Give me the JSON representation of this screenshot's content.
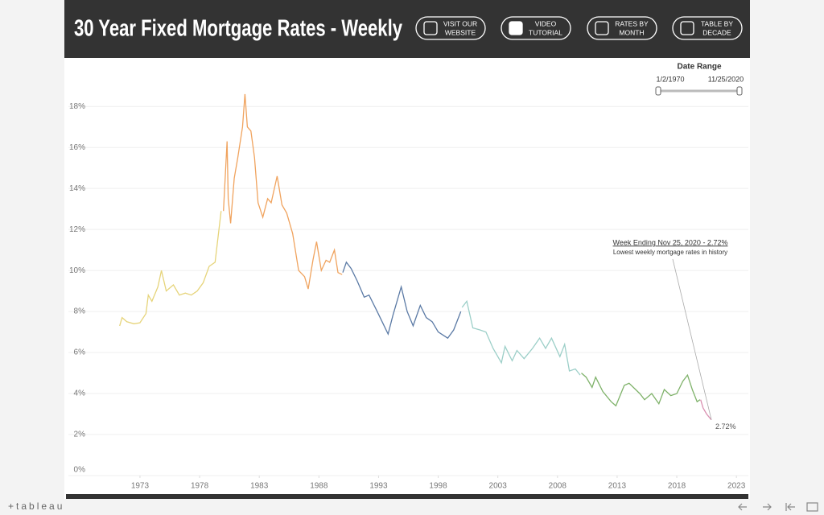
{
  "header": {
    "title": "30 Year Fixed Mortgage Rates - Weekly",
    "buttons": [
      [
        "VISIT OUR",
        "WEBSITE"
      ],
      [
        "VIDEO",
        "TUTORIAL"
      ],
      [
        "RATES BY",
        "MONTH"
      ],
      [
        "TABLE BY",
        "DECADE"
      ]
    ]
  },
  "date_range": {
    "title": "Date Range",
    "start": "1/2/1970",
    "end": "11/25/2020"
  },
  "footer": {
    "brand": "+tableau"
  },
  "chart_data": {
    "type": "line",
    "xlim": [
      1967,
      2024
    ],
    "xticks": [
      1973,
      1978,
      1983,
      1988,
      1993,
      1998,
      2003,
      2008,
      2013,
      2018,
      2023
    ],
    "ylim": [
      0,
      19.5
    ],
    "yticks": [
      {
        "value": 0,
        "label": "0%"
      },
      {
        "value": 2,
        "label": "2%"
      },
      {
        "value": 4,
        "label": "4%"
      },
      {
        "value": 6,
        "label": "6%"
      },
      {
        "value": 8,
        "label": "8%"
      },
      {
        "value": 10,
        "label": "10%"
      },
      {
        "value": 12,
        "label": "12%"
      },
      {
        "value": 14,
        "label": "14%"
      },
      {
        "value": 16,
        "label": "16%"
      },
      {
        "value": 18,
        "label": "18%"
      }
    ],
    "grid": true,
    "annotation": {
      "title": "Week Ending Nov 25, 2020 - 2.72%",
      "text": "Lowest weekly mortgage rates in history"
    },
    "series": [
      {
        "color": "#e6d47a",
        "x": [
          1971.3,
          1971.5,
          1971.9,
          1972.5,
          1973.0,
          1973.5,
          1973.7,
          1974.0,
          1974.5,
          1974.8,
          1975.2,
          1975.8,
          1976.3,
          1976.8,
          1977.3,
          1977.8,
          1978.3,
          1978.8,
          1979.3,
          1979.8
        ],
        "values": [
          7.3,
          7.7,
          7.5,
          7.4,
          7.45,
          7.9,
          8.8,
          8.5,
          9.2,
          10.0,
          9.0,
          9.3,
          8.8,
          8.9,
          8.8,
          9.0,
          9.4,
          10.2,
          10.4,
          12.9
        ]
      },
      {
        "color": "#f0a35e",
        "x": [
          1980.0,
          1980.3,
          1980.4,
          1980.6,
          1980.9,
          1981.2,
          1981.6,
          1981.8,
          1982.0,
          1982.3,
          1982.6,
          1982.9,
          1983.3,
          1983.7,
          1984.0,
          1984.5,
          1984.9,
          1985.3,
          1985.8,
          1986.3,
          1986.8,
          1987.1,
          1987.5,
          1987.8,
          1988.2,
          1988.6,
          1988.9,
          1989.3,
          1989.6,
          1989.95
        ],
        "values": [
          12.9,
          16.3,
          13.5,
          12.3,
          14.5,
          15.5,
          17.0,
          18.6,
          17.0,
          16.8,
          15.5,
          13.3,
          12.6,
          13.5,
          13.3,
          14.6,
          13.2,
          12.8,
          11.8,
          10.0,
          9.7,
          9.1,
          10.5,
          11.4,
          10.0,
          10.5,
          10.4,
          11.0,
          9.9,
          9.8
        ]
      },
      {
        "color": "#5b7aa5",
        "x": [
          1990.0,
          1990.3,
          1990.7,
          1991.2,
          1991.8,
          1992.2,
          1992.8,
          1993.3,
          1993.8,
          1994.2,
          1994.9,
          1995.4,
          1995.9,
          1996.5,
          1997.0,
          1997.5,
          1998.0,
          1998.8,
          1999.3,
          1999.9
        ],
        "values": [
          9.9,
          10.4,
          10.1,
          9.5,
          8.7,
          8.8,
          8.1,
          7.5,
          6.9,
          7.8,
          9.2,
          8.0,
          7.3,
          8.3,
          7.7,
          7.5,
          7.0,
          6.7,
          7.1,
          8.0
        ]
      },
      {
        "color": "#9ccfc8",
        "x": [
          2000.0,
          2000.4,
          2000.9,
          2001.5,
          2002.0,
          2002.6,
          2003.3,
          2003.6,
          2004.2,
          2004.6,
          2005.2,
          2005.9,
          2006.5,
          2007.0,
          2007.5,
          2008.2,
          2008.6,
          2009.0,
          2009.5,
          2009.9
        ],
        "values": [
          8.2,
          8.5,
          7.2,
          7.1,
          7.0,
          6.2,
          5.5,
          6.3,
          5.6,
          6.1,
          5.7,
          6.2,
          6.7,
          6.2,
          6.7,
          5.8,
          6.4,
          5.1,
          5.2,
          4.9
        ]
      },
      {
        "color": "#7fb26a",
        "x": [
          2010.0,
          2010.4,
          2010.9,
          2011.2,
          2011.8,
          2012.5,
          2012.9,
          2013.6,
          2014.0,
          2014.9,
          2015.3,
          2015.9,
          2016.5,
          2016.95,
          2017.5,
          2018.0,
          2018.5,
          2018.9,
          2019.3,
          2019.7,
          2019.95
        ],
        "values": [
          5.0,
          4.8,
          4.3,
          4.8,
          4.1,
          3.6,
          3.4,
          4.4,
          4.5,
          4.0,
          3.7,
          4.0,
          3.5,
          4.2,
          3.9,
          4.0,
          4.6,
          4.9,
          4.2,
          3.6,
          3.7
        ]
      },
      {
        "color": "#d98fb0",
        "x": [
          2020.0,
          2020.2,
          2020.5,
          2020.9
        ],
        "values": [
          3.7,
          3.3,
          3.0,
          2.72
        ],
        "value_labels": [
          null,
          null,
          null,
          "2.72%"
        ]
      }
    ]
  }
}
